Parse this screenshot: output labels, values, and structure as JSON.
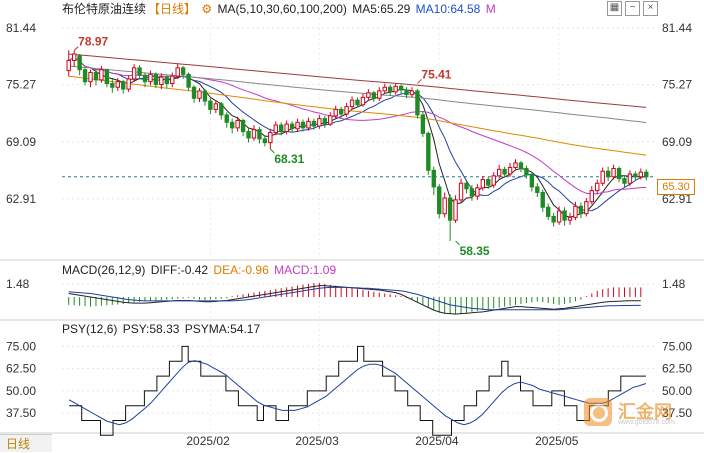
{
  "header": {
    "title": "布伦特原油连续",
    "period": "【日线】",
    "ma_label": "MA(5,10,30,60,100,200)",
    "ma5_label": "MA5:65.29",
    "ma10_label": "MA10:64.58",
    "ma_flag": "M"
  },
  "macd_header": {
    "label": "MACD(26,12,9)",
    "diff_label": "DIFF:-0.42",
    "dea_label": "DEA:-0.96",
    "macd_label": "MACD:1.09"
  },
  "psy_header": {
    "label": "PSY(12,6)",
    "psy_label": "PSY:58.33",
    "psyma_label": "PSYMA:54.17"
  },
  "bottom_tab": {
    "label": "日线"
  },
  "logo": {
    "cn": "汇金网",
    "url": "www.gold678.com"
  },
  "price_tag": "65.30",
  "colors": {
    "up": "#d0021b",
    "down": "#1f8b24",
    "ma5": "#222222",
    "ma10": "#1f3fa0",
    "ma30": "#c23bc2",
    "ma60": "#e08a00",
    "ma100": "#888888",
    "ma200": "#a0393d"
  },
  "chart_data": [
    {
      "type": "candlestick",
      "y_ticks": [
        81.44,
        75.27,
        69.09,
        62.91
      ],
      "ylim": [
        56.5,
        82.5
      ],
      "x_ticks": [
        "2025/02",
        "2025/03",
        "2025/04",
        "2025/05"
      ],
      "annotations": [
        {
          "label": "78.97",
          "value": 78.97,
          "index": 1
        },
        {
          "label": "68.31",
          "value": 68.31,
          "index": 37
        },
        {
          "label": "75.41",
          "value": 75.41,
          "index": 64
        },
        {
          "label": "58.35",
          "value": 58.35,
          "index": 71
        }
      ],
      "current_price": 65.3,
      "candles": [
        [
          76.8,
          77.9,
          79.0,
          76.2
        ],
        [
          77.9,
          78.6,
          78.97,
          77.2
        ],
        [
          78.4,
          76.9,
          78.6,
          76.3
        ],
        [
          76.9,
          75.6,
          77.1,
          75.2
        ],
        [
          75.6,
          76.6,
          76.9,
          75.0
        ],
        [
          76.6,
          75.8,
          76.8,
          75.2
        ],
        [
          75.8,
          76.9,
          77.3,
          75.5
        ],
        [
          76.9,
          75.4,
          77.0,
          75.0
        ],
        [
          75.4,
          75.0,
          75.9,
          74.4
        ],
        [
          75.0,
          75.6,
          76.0,
          74.6
        ],
        [
          75.6,
          74.8,
          75.8,
          74.3
        ],
        [
          74.8,
          75.9,
          76.3,
          74.5
        ],
        [
          75.9,
          77.1,
          77.5,
          75.6
        ],
        [
          77.1,
          76.3,
          77.4,
          75.9
        ],
        [
          76.3,
          75.6,
          76.6,
          75.0
        ],
        [
          75.6,
          76.4,
          76.8,
          75.2
        ],
        [
          76.4,
          75.3,
          76.6,
          74.9
        ],
        [
          75.3,
          76.1,
          76.5,
          74.8
        ],
        [
          76.1,
          75.4,
          76.3,
          74.9
        ],
        [
          75.4,
          76.2,
          76.6,
          75.0
        ],
        [
          76.2,
          77.1,
          77.6,
          75.9
        ],
        [
          77.1,
          76.4,
          77.3,
          75.9
        ],
        [
          76.4,
          75.0,
          76.6,
          74.6
        ],
        [
          75.0,
          73.8,
          75.2,
          73.3
        ],
        [
          73.8,
          74.6,
          74.9,
          73.4
        ],
        [
          74.6,
          73.5,
          74.8,
          73.0
        ],
        [
          73.5,
          72.6,
          73.8,
          72.1
        ],
        [
          72.6,
          73.2,
          73.6,
          72.2
        ],
        [
          73.2,
          72.0,
          73.4,
          71.5
        ],
        [
          72.0,
          71.2,
          72.3,
          70.6
        ],
        [
          71.2,
          70.6,
          71.6,
          70.0
        ],
        [
          70.6,
          71.4,
          71.8,
          70.2
        ],
        [
          71.4,
          70.2,
          71.6,
          69.7
        ],
        [
          70.2,
          69.5,
          70.6,
          69.0
        ],
        [
          69.5,
          70.4,
          70.9,
          69.2
        ],
        [
          70.4,
          69.4,
          70.7,
          68.9
        ],
        [
          69.4,
          69.0,
          69.8,
          68.6
        ],
        [
          69.0,
          70.1,
          70.5,
          68.31
        ],
        [
          70.1,
          70.9,
          71.3,
          69.8
        ],
        [
          70.9,
          70.2,
          71.2,
          69.8
        ],
        [
          70.2,
          71.0,
          71.4,
          69.9
        ],
        [
          71.0,
          70.5,
          71.3,
          70.1
        ],
        [
          70.5,
          71.2,
          71.6,
          70.2
        ],
        [
          71.2,
          70.6,
          71.5,
          70.2
        ],
        [
          70.6,
          71.3,
          71.7,
          70.3
        ],
        [
          71.3,
          70.8,
          71.6,
          70.4
        ],
        [
          70.8,
          71.6,
          72.0,
          70.5
        ],
        [
          71.6,
          71.0,
          71.9,
          70.6
        ],
        [
          71.0,
          71.9,
          72.3,
          70.8
        ],
        [
          71.9,
          72.6,
          73.0,
          71.6
        ],
        [
          72.6,
          72.1,
          72.9,
          71.7
        ],
        [
          72.1,
          72.9,
          73.3,
          71.8
        ],
        [
          72.9,
          73.6,
          74.0,
          72.6
        ],
        [
          73.6,
          73.1,
          73.9,
          72.8
        ],
        [
          73.1,
          73.9,
          74.3,
          72.9
        ],
        [
          73.9,
          74.4,
          74.8,
          73.6
        ],
        [
          74.4,
          73.8,
          74.6,
          73.4
        ],
        [
          73.8,
          74.6,
          75.0,
          73.5
        ],
        [
          74.6,
          75.0,
          75.4,
          74.3
        ],
        [
          75.0,
          74.5,
          75.3,
          74.1
        ],
        [
          74.5,
          75.1,
          75.41,
          74.2
        ],
        [
          75.1,
          74.7,
          75.3,
          74.3
        ],
        [
          74.7,
          74.2,
          75.0,
          73.8
        ],
        [
          74.2,
          74.6,
          75.0,
          73.9
        ],
        [
          74.6,
          72.0,
          74.8,
          71.6
        ],
        [
          72.0,
          70.0,
          72.4,
          69.6
        ],
        [
          70.0,
          66.0,
          70.2,
          65.5
        ],
        [
          66.0,
          64.2,
          66.4,
          63.3
        ],
        [
          64.2,
          61.3,
          64.5,
          60.8
        ],
        [
          61.3,
          63.0,
          63.6,
          60.9
        ],
        [
          63.0,
          60.6,
          63.4,
          58.35
        ],
        [
          60.6,
          62.8,
          63.3,
          60.3
        ],
        [
          62.8,
          64.6,
          65.1,
          62.5
        ],
        [
          64.6,
          64.0,
          65.0,
          63.5
        ],
        [
          64.0,
          63.2,
          64.4,
          62.7
        ],
        [
          63.2,
          64.1,
          64.5,
          62.8
        ],
        [
          64.1,
          65.0,
          65.4,
          63.8
        ],
        [
          65.0,
          64.4,
          65.3,
          64.0
        ],
        [
          64.4,
          65.4,
          65.8,
          64.1
        ],
        [
          65.4,
          66.1,
          66.6,
          65.1
        ],
        [
          66.1,
          65.6,
          66.4,
          65.2
        ],
        [
          65.6,
          66.3,
          66.8,
          65.3
        ],
        [
          66.3,
          66.8,
          67.2,
          66.0
        ],
        [
          66.8,
          66.2,
          67.0,
          65.8
        ],
        [
          66.2,
          65.5,
          66.5,
          65.1
        ],
        [
          65.5,
          64.2,
          65.8,
          63.7
        ],
        [
          64.2,
          63.6,
          64.6,
          63.1
        ],
        [
          63.6,
          62.0,
          63.9,
          61.5
        ],
        [
          62.0,
          61.0,
          62.4,
          60.6
        ],
        [
          61.0,
          60.4,
          61.4,
          59.9
        ],
        [
          60.4,
          61.6,
          62.1,
          60.1
        ],
        [
          61.6,
          60.6,
          62.0,
          60.0
        ],
        [
          60.6,
          60.9,
          61.4,
          60.1
        ],
        [
          60.9,
          62.1,
          62.6,
          60.6
        ],
        [
          62.1,
          61.3,
          62.5,
          60.8
        ],
        [
          61.3,
          62.6,
          63.0,
          61.0
        ],
        [
          62.6,
          63.8,
          64.3,
          62.3
        ],
        [
          63.8,
          64.6,
          65.0,
          63.4
        ],
        [
          64.6,
          65.9,
          66.3,
          64.3
        ],
        [
          65.9,
          65.3,
          66.4,
          64.8
        ],
        [
          65.3,
          66.2,
          66.6,
          65.0
        ],
        [
          66.2,
          65.1,
          66.4,
          64.7
        ],
        [
          65.1,
          64.6,
          65.5,
          64.1
        ],
        [
          64.6,
          65.6,
          66.0,
          64.3
        ],
        [
          65.6,
          65.3,
          65.9,
          64.9
        ],
        [
          65.3,
          65.8,
          66.2,
          65.0
        ],
        [
          65.8,
          65.3,
          66.1,
          64.9
        ]
      ]
    },
    {
      "type": "bar",
      "name": "MACD",
      "y_ticks": [
        1.48
      ],
      "ylim": [
        -2.4,
        2.4
      ],
      "values": [
        -0.9,
        -0.95,
        -1.0,
        -1.05,
        -1.1,
        -1.05,
        -1.0,
        -0.95,
        -0.9,
        -0.85,
        -0.8,
        -0.7,
        -0.6,
        -0.55,
        -0.5,
        -0.45,
        -0.4,
        -0.35,
        -0.3,
        -0.25,
        -0.2,
        -0.15,
        -0.1,
        -0.2,
        -0.3,
        -0.35,
        -0.3,
        -0.25,
        -0.2,
        -0.15,
        0.1,
        0.2,
        0.3,
        0.4,
        0.5,
        0.6,
        0.7,
        0.8,
        0.9,
        1.0,
        1.1,
        1.2,
        1.3,
        1.4,
        1.5,
        1.6,
        1.6,
        1.5,
        1.4,
        1.3,
        1.2,
        1.1,
        1.0,
        0.9,
        0.8,
        0.7,
        0.6,
        0.5,
        0.4,
        0.3,
        0.2,
        0.1,
        -0.1,
        -0.3,
        -0.6,
        -0.9,
        -1.2,
        -1.5,
        -1.8,
        -1.9,
        -1.95,
        -2.0,
        -1.9,
        -1.8,
        -1.7,
        -1.6,
        -1.5,
        -1.4,
        -1.3,
        -1.2,
        -1.1,
        -1.0,
        -0.9,
        -0.8,
        -0.7,
        -0.6,
        -0.5,
        -0.6,
        -0.7,
        -0.8,
        -0.9,
        -0.8,
        -0.7,
        -0.5,
        -0.3,
        0.1,
        0.4,
        0.7,
        0.9,
        1.0,
        1.1,
        1.1,
        1.1,
        1.1,
        1.09,
        1.09
      ],
      "diff": [
        0.4,
        0.3,
        0.2,
        0.1,
        0.0,
        -0.1,
        -0.2,
        -0.3,
        -0.4,
        -0.5,
        -0.6,
        -0.65,
        -0.7,
        -0.7,
        -0.7,
        -0.65,
        -0.6,
        -0.55,
        -0.5,
        -0.45,
        -0.4,
        -0.4,
        -0.4,
        -0.45,
        -0.5,
        -0.55,
        -0.55,
        -0.5,
        -0.45,
        -0.4,
        -0.3,
        -0.2,
        -0.1,
        0.0,
        0.1,
        0.2,
        0.3,
        0.4,
        0.5,
        0.6,
        0.7,
        0.8,
        0.9,
        1.0,
        1.1,
        1.2,
        1.3,
        1.3,
        1.25,
        1.2,
        1.15,
        1.1,
        1.05,
        1.0,
        0.95,
        0.9,
        0.85,
        0.8,
        0.7,
        0.6,
        0.5,
        0.3,
        0.0,
        -0.3,
        -0.6,
        -0.9,
        -1.2,
        -1.5,
        -1.7,
        -1.85,
        -1.9,
        -1.95,
        -1.9,
        -1.85,
        -1.8,
        -1.75,
        -1.7,
        -1.6,
        -1.5,
        -1.4,
        -1.3,
        -1.2,
        -1.1,
        -1.1,
        -1.15,
        -1.2,
        -1.25,
        -1.3,
        -1.35,
        -1.4,
        -1.35,
        -1.3,
        -1.2,
        -1.1,
        -1.0,
        -0.9,
        -0.8,
        -0.7,
        -0.6,
        -0.55,
        -0.5,
        -0.48,
        -0.45,
        -0.43,
        -0.42,
        -0.42
      ],
      "dea": [
        0.6,
        0.55,
        0.5,
        0.45,
        0.4,
        0.3,
        0.2,
        0.1,
        0.0,
        -0.1,
        -0.2,
        -0.3,
        -0.35,
        -0.4,
        -0.45,
        -0.45,
        -0.45,
        -0.45,
        -0.45,
        -0.45,
        -0.45,
        -0.45,
        -0.45,
        -0.45,
        -0.45,
        -0.45,
        -0.45,
        -0.45,
        -0.45,
        -0.45,
        -0.45,
        -0.4,
        -0.35,
        -0.3,
        -0.2,
        -0.1,
        0.0,
        0.1,
        0.2,
        0.3,
        0.4,
        0.5,
        0.6,
        0.7,
        0.8,
        0.9,
        1.0,
        1.05,
        1.1,
        1.1,
        1.1,
        1.1,
        1.05,
        1.05,
        1.0,
        1.0,
        0.95,
        0.9,
        0.85,
        0.8,
        0.75,
        0.7,
        0.6,
        0.45,
        0.3,
        0.1,
        -0.1,
        -0.3,
        -0.5,
        -0.7,
        -0.9,
        -1.0,
        -1.1,
        -1.2,
        -1.3,
        -1.35,
        -1.4,
        -1.45,
        -1.45,
        -1.45,
        -1.45,
        -1.45,
        -1.45,
        -1.45,
        -1.45,
        -1.45,
        -1.45,
        -1.45,
        -1.45,
        -1.45,
        -1.45,
        -1.4,
        -1.35,
        -1.3,
        -1.25,
        -1.2,
        -1.15,
        -1.1,
        -1.05,
        -1.0,
        -1.0,
        -0.98,
        -0.97,
        -0.97,
        -0.96,
        -0.96
      ]
    },
    {
      "type": "line",
      "name": "PSY",
      "y_ticks": [
        75.0,
        62.5,
        50.0,
        37.5
      ],
      "ylim": [
        28,
        82
      ],
      "psy": [
        41.67,
        41.67,
        33.33,
        33.33,
        33.33,
        25,
        25,
        33.33,
        33.33,
        41.67,
        41.67,
        41.67,
        50,
        50,
        58.33,
        58.33,
        66.67,
        66.67,
        75,
        66.67,
        66.67,
        58.33,
        58.33,
        58.33,
        58.33,
        50,
        50,
        41.67,
        41.67,
        41.67,
        33.33,
        41.67,
        41.67,
        33.33,
        33.33,
        41.67,
        41.67,
        41.67,
        50,
        50,
        50,
        58.33,
        58.33,
        66.67,
        66.67,
        66.67,
        75,
        66.67,
        66.67,
        66.67,
        58.33,
        58.33,
        50,
        50,
        41.67,
        41.67,
        33.33,
        33.33,
        25,
        25,
        25,
        33.33,
        33.33,
        41.67,
        41.67,
        50,
        50,
        58.33,
        58.33,
        66.67,
        58.33,
        58.33,
        50,
        50,
        41.67,
        41.67,
        41.67,
        50,
        50,
        41.67,
        41.67,
        33.33,
        33.33,
        41.67,
        41.67,
        41.67,
        50,
        50,
        58.33,
        58.33,
        58.33,
        58.33,
        58.33
      ],
      "psyma": [
        45,
        43,
        41,
        39,
        37,
        35,
        33,
        32,
        31,
        32,
        34,
        37,
        40,
        43,
        47,
        51,
        55,
        59,
        63,
        66,
        67,
        66,
        65,
        63,
        61,
        59,
        56,
        53,
        50,
        47,
        44,
        42,
        41,
        40,
        39,
        39,
        39,
        40,
        41,
        43,
        45,
        47,
        50,
        53,
        56,
        59,
        62,
        64,
        65,
        65,
        64,
        62,
        60,
        57,
        54,
        51,
        48,
        45,
        42,
        39,
        36,
        34,
        32,
        31,
        32,
        34,
        37,
        41,
        45,
        49,
        52,
        54,
        55,
        54,
        53,
        51,
        50,
        49,
        48,
        47,
        46,
        45,
        44,
        43,
        43,
        43,
        44,
        46,
        48,
        50,
        52,
        53,
        54.17
      ]
    }
  ]
}
